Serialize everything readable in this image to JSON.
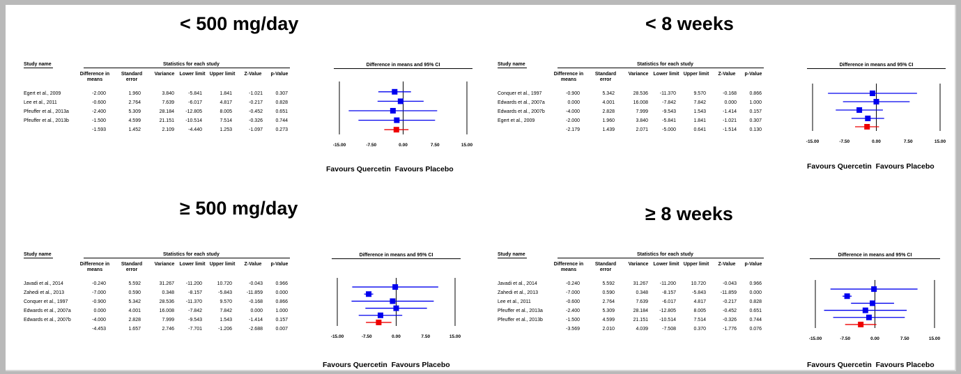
{
  "headers": {
    "study_name": "Study name",
    "stats_group": "Statistics for each study",
    "diff": "Difference in means",
    "se": "Standard error",
    "variance": "Variance",
    "lower": "Lower limit",
    "upper": "Upper limit",
    "z": "Z-Value",
    "p": "p-Value",
    "plot_title": "Difference in means and 95% CI"
  },
  "axis_ticks": [
    "-15.00",
    "-7.50",
    "0.00",
    "7.50",
    "15.00"
  ],
  "favours_left": "Favours Quercetin",
  "favours_right": "Favours Placebo",
  "colors": {
    "study": "#0000ee",
    "summary": "#ee0000"
  },
  "chart_data": [
    {
      "type": "forest",
      "title": "< 500 mg/day",
      "xlim": [
        -15,
        15
      ],
      "rows": [
        {
          "study": "Egert et al., 2009",
          "diff": "-2.000",
          "se": "1.960",
          "variance": "3.840",
          "lower": "-5.841",
          "upper": "1.841",
          "z": "-1.021",
          "p": "0.307"
        },
        {
          "study": "Lee et al., 2011",
          "diff": "-0.600",
          "se": "2.764",
          "variance": "7.639",
          "lower": "-6.017",
          "upper": "4.817",
          "z": "-0.217",
          "p": "0.828"
        },
        {
          "study": "Pfeuffer et al., 2013a",
          "diff": "-2.400",
          "se": "5.309",
          "variance": "28.184",
          "lower": "-12.805",
          "upper": "8.005",
          "z": "-0.452",
          "p": "0.651"
        },
        {
          "study": "Pfeuffer et al., 2013b",
          "diff": "-1.500",
          "se": "4.599",
          "variance": "21.151",
          "lower": "-10.514",
          "upper": "7.514",
          "z": "-0.326",
          "p": "0.744"
        }
      ],
      "summary": {
        "study": "",
        "diff": "-1.593",
        "se": "1.452",
        "variance": "2.109",
        "lower": "-4.440",
        "upper": "1.253",
        "z": "-1.097",
        "p": "0.273"
      }
    },
    {
      "type": "forest",
      "title": "< 8 weeks",
      "xlim": [
        -15,
        15
      ],
      "rows": [
        {
          "study": "Conquer et al., 1997",
          "diff": "-0.900",
          "se": "5.342",
          "variance": "28.536",
          "lower": "-11.370",
          "upper": "9.570",
          "z": "-0.168",
          "p": "0.866"
        },
        {
          "study": "Edwards et al., 2007a",
          "diff": "0.000",
          "se": "4.001",
          "variance": "16.008",
          "lower": "-7.842",
          "upper": "7.842",
          "z": "0.000",
          "p": "1.000"
        },
        {
          "study": "Edwards et al., 2007b",
          "diff": "-4.000",
          "se": "2.828",
          "variance": "7.999",
          "lower": "-9.543",
          "upper": "1.543",
          "z": "-1.414",
          "p": "0.157"
        },
        {
          "study": "Egert et al., 2009",
          "diff": "-2.000",
          "se": "1.960",
          "variance": "3.840",
          "lower": "-5.841",
          "upper": "1.841",
          "z": "-1.021",
          "p": "0.307"
        }
      ],
      "summary": {
        "study": "",
        "diff": "-2.179",
        "se": "1.439",
        "variance": "2.071",
        "lower": "-5.000",
        "upper": "0.641",
        "z": "-1.514",
        "p": "0.130"
      }
    },
    {
      "type": "forest",
      "title": "≥ 500 mg/day",
      "xlim": [
        -15,
        15
      ],
      "rows": [
        {
          "study": "Javadi et al., 2014",
          "diff": "-0.240",
          "se": "5.592",
          "variance": "31.267",
          "lower": "-11.200",
          "upper": "10.720",
          "z": "-0.043",
          "p": "0.966"
        },
        {
          "study": "Zahedi et al., 2013",
          "diff": "-7.000",
          "se": "0.590",
          "variance": "0.348",
          "lower": "-8.157",
          "upper": "-5.843",
          "z": "-11.859",
          "p": "0.000"
        },
        {
          "study": "Conquer et al., 1997",
          "diff": "-0.900",
          "se": "5.342",
          "variance": "28.536",
          "lower": "-11.370",
          "upper": "9.570",
          "z": "-0.168",
          "p": "0.866"
        },
        {
          "study": "Edwards et al., 2007a",
          "diff": "0.000",
          "se": "4.001",
          "variance": "16.008",
          "lower": "-7.842",
          "upper": "7.842",
          "z": "0.000",
          "p": "1.000"
        },
        {
          "study": "Edwards et al., 2007b",
          "diff": "-4.000",
          "se": "2.828",
          "variance": "7.999",
          "lower": "-9.543",
          "upper": "1.543",
          "z": "-1.414",
          "p": "0.157"
        }
      ],
      "summary": {
        "study": "",
        "diff": "-4.453",
        "se": "1.657",
        "variance": "2.746",
        "lower": "-7.701",
        "upper": "-1.206",
        "z": "-2.688",
        "p": "0.007"
      }
    },
    {
      "type": "forest",
      "title": "≥ 8 weeks",
      "xlim": [
        -15,
        15
      ],
      "rows": [
        {
          "study": "Javadi et al., 2014",
          "diff": "-0.240",
          "se": "5.592",
          "variance": "31.267",
          "lower": "-11.200",
          "upper": "10.720",
          "z": "-0.043",
          "p": "0.966"
        },
        {
          "study": "Zahedi et al., 2013",
          "diff": "-7.000",
          "se": "0.590",
          "variance": "0.348",
          "lower": "-8.157",
          "upper": "-5.843",
          "z": "-11.859",
          "p": "0.000"
        },
        {
          "study": "Lee et al., 2011",
          "diff": "-0.600",
          "se": "2.764",
          "variance": "7.639",
          "lower": "-6.017",
          "upper": "4.817",
          "z": "-0.217",
          "p": "0.828"
        },
        {
          "study": "Pfeuffer et al., 2013a",
          "diff": "-2.400",
          "se": "5.309",
          "variance": "28.184",
          "lower": "-12.805",
          "upper": "8.005",
          "z": "-0.452",
          "p": "0.651"
        },
        {
          "study": "Pfeuffer et al., 2013b",
          "diff": "-1.500",
          "se": "4.599",
          "variance": "21.151",
          "lower": "-10.514",
          "upper": "7.514",
          "z": "-0.326",
          "p": "0.744"
        }
      ],
      "summary": {
        "study": "",
        "diff": "-3.569",
        "se": "2.010",
        "variance": "4.039",
        "lower": "-7.508",
        "upper": "0.370",
        "z": "-1.776",
        "p": "0.076"
      }
    }
  ]
}
